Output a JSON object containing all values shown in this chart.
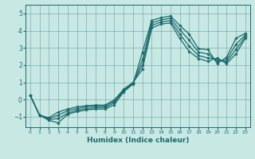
{
  "xlabel": "Humidex (Indice chaleur)",
  "bg_color": "#c8e8e4",
  "line_color": "#1a6b6b",
  "marker": "D",
  "markersize": 1.8,
  "linewidth": 0.9,
  "xlim": [
    -0.5,
    23.5
  ],
  "ylim": [
    -1.6,
    5.5
  ],
  "xticks": [
    0,
    1,
    2,
    3,
    4,
    5,
    6,
    7,
    8,
    9,
    10,
    11,
    12,
    13,
    14,
    15,
    16,
    17,
    18,
    19,
    20,
    21,
    22,
    23
  ],
  "yticks": [
    -1,
    0,
    1,
    2,
    3,
    4,
    5
  ],
  "series": [
    [
      0,
      0.25
    ],
    [
      1,
      -0.9
    ],
    [
      2,
      -1.2
    ],
    [
      3,
      -1.35
    ],
    [
      4,
      -0.85
    ],
    [
      5,
      -0.7
    ],
    [
      6,
      -0.6
    ],
    [
      7,
      -0.55
    ],
    [
      8,
      -0.55
    ],
    [
      9,
      -0.3
    ],
    [
      10,
      0.45
    ],
    [
      11,
      0.9
    ],
    [
      12,
      2.75
    ],
    [
      13,
      4.6
    ],
    [
      14,
      4.75
    ],
    [
      15,
      4.85
    ],
    [
      16,
      4.3
    ],
    [
      17,
      3.8
    ],
    [
      18,
      2.95
    ],
    [
      19,
      2.9
    ],
    [
      20,
      2.1
    ],
    [
      21,
      2.45
    ],
    [
      22,
      3.55
    ],
    [
      23,
      3.85
    ]
  ],
  "series2": [
    [
      0,
      0.25
    ],
    [
      1,
      -0.9
    ],
    [
      2,
      -1.15
    ],
    [
      3,
      -1.1
    ],
    [
      4,
      -0.78
    ],
    [
      5,
      -0.62
    ],
    [
      6,
      -0.52
    ],
    [
      7,
      -0.47
    ],
    [
      8,
      -0.47
    ],
    [
      9,
      -0.18
    ],
    [
      10,
      0.5
    ],
    [
      11,
      0.93
    ],
    [
      12,
      2.3
    ],
    [
      13,
      4.45
    ],
    [
      14,
      4.62
    ],
    [
      15,
      4.72
    ],
    [
      16,
      4.05
    ],
    [
      17,
      3.45
    ],
    [
      18,
      2.75
    ],
    [
      19,
      2.65
    ],
    [
      20,
      2.2
    ],
    [
      21,
      2.3
    ],
    [
      22,
      3.2
    ],
    [
      23,
      3.75
    ]
  ],
  "series3": [
    [
      0,
      0.25
    ],
    [
      1,
      -0.9
    ],
    [
      2,
      -1.1
    ],
    [
      3,
      -0.9
    ],
    [
      4,
      -0.65
    ],
    [
      5,
      -0.52
    ],
    [
      6,
      -0.42
    ],
    [
      7,
      -0.38
    ],
    [
      8,
      -0.38
    ],
    [
      9,
      -0.08
    ],
    [
      10,
      0.56
    ],
    [
      11,
      0.97
    ],
    [
      12,
      2.0
    ],
    [
      13,
      4.3
    ],
    [
      14,
      4.5
    ],
    [
      15,
      4.58
    ],
    [
      16,
      3.8
    ],
    [
      17,
      3.1
    ],
    [
      18,
      2.55
    ],
    [
      19,
      2.42
    ],
    [
      20,
      2.32
    ],
    [
      21,
      2.18
    ],
    [
      22,
      2.9
    ],
    [
      23,
      3.65
    ]
  ],
  "series4": [
    [
      0,
      0.25
    ],
    [
      1,
      -0.9
    ],
    [
      2,
      -1.05
    ],
    [
      3,
      -0.72
    ],
    [
      4,
      -0.55
    ],
    [
      5,
      -0.42
    ],
    [
      6,
      -0.35
    ],
    [
      7,
      -0.32
    ],
    [
      8,
      -0.32
    ],
    [
      9,
      -0.02
    ],
    [
      10,
      0.6
    ],
    [
      11,
      1.0
    ],
    [
      12,
      1.75
    ],
    [
      13,
      4.15
    ],
    [
      14,
      4.38
    ],
    [
      15,
      4.45
    ],
    [
      16,
      3.55
    ],
    [
      17,
      2.8
    ],
    [
      18,
      2.38
    ],
    [
      19,
      2.22
    ],
    [
      20,
      2.42
    ],
    [
      21,
      2.08
    ],
    [
      22,
      2.65
    ],
    [
      23,
      3.55
    ]
  ]
}
